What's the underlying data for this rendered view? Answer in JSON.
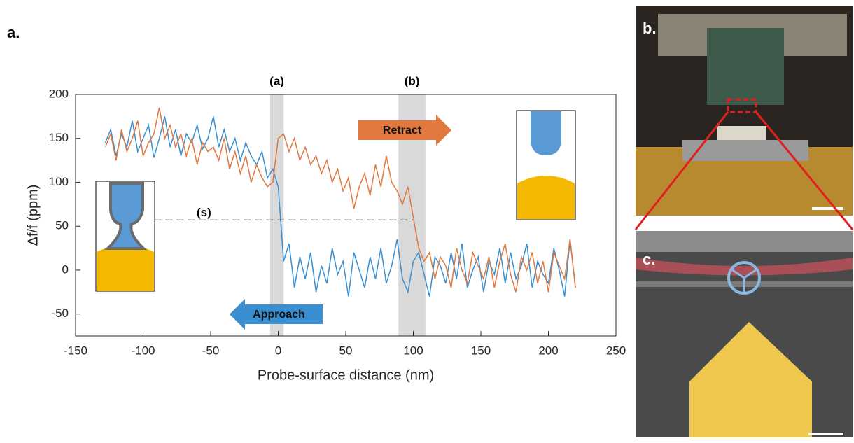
{
  "panel_labels": {
    "a": "a.",
    "b": "b.",
    "c": "c."
  },
  "chart_data": {
    "type": "line",
    "xlabel": "Probe-surface distance (nm)",
    "ylabel": "Δf/f (ppm)",
    "xlim": [
      -150,
      250
    ],
    "ylim": [
      -75,
      200
    ],
    "xticks": [
      -150,
      -100,
      -50,
      0,
      50,
      100,
      150,
      200,
      250
    ],
    "yticks": [
      -50,
      0,
      50,
      100,
      150,
      200
    ],
    "bands": [
      {
        "label": "(a)",
        "range": [
          -6,
          4
        ]
      },
      {
        "label": "(b)",
        "range": [
          89,
          109
        ]
      }
    ],
    "hline": {
      "label": "(s)",
      "value": 57,
      "range": [
        -125,
        100
      ]
    },
    "annotations": {
      "retract": "Retract",
      "approach": "Approach"
    },
    "x": [
      -128,
      -124,
      -120,
      -116,
      -112,
      -108,
      -104,
      -100,
      -96,
      -92,
      -88,
      -84,
      -80,
      -76,
      -72,
      -68,
      -64,
      -60,
      -56,
      -52,
      -48,
      -44,
      -40,
      -36,
      -32,
      -28,
      -24,
      -20,
      -16,
      -12,
      -8,
      -4,
      0,
      4,
      8,
      12,
      16,
      20,
      24,
      28,
      32,
      36,
      40,
      44,
      48,
      52,
      56,
      60,
      64,
      68,
      72,
      76,
      80,
      84,
      88,
      92,
      96,
      100,
      104,
      108,
      112,
      116,
      120,
      124,
      128,
      132,
      136,
      140,
      144,
      148,
      152,
      156,
      160,
      164,
      168,
      172,
      176,
      180,
      184,
      188,
      192,
      196,
      200,
      204,
      208,
      212,
      216,
      220
    ],
    "series": [
      {
        "name": "Approach",
        "color": "#3a8fd0",
        "values": [
          145,
          160,
          130,
          155,
          140,
          170,
          135,
          150,
          165,
          128,
          150,
          175,
          140,
          160,
          130,
          155,
          145,
          165,
          138,
          150,
          175,
          140,
          160,
          135,
          150,
          125,
          145,
          130,
          120,
          135,
          105,
          115,
          95,
          10,
          30,
          -20,
          15,
          -10,
          20,
          -25,
          5,
          -15,
          25,
          -5,
          10,
          -30,
          20,
          0,
          -20,
          15,
          -10,
          25,
          -15,
          5,
          35,
          -10,
          -25,
          10,
          20,
          -5,
          -30,
          15,
          5,
          -15,
          20,
          -10,
          30,
          -20,
          0,
          15,
          -25,
          10,
          -5,
          25,
          -15,
          20,
          -10,
          5,
          30,
          -20,
          10,
          -5,
          -15,
          25,
          0,
          -30,
          35,
          -20
        ]
      },
      {
        "name": "Retract",
        "color": "#e07840",
        "values": [
          140,
          155,
          125,
          160,
          135,
          150,
          170,
          130,
          145,
          155,
          185,
          150,
          165,
          140,
          155,
          130,
          150,
          120,
          145,
          135,
          140,
          125,
          150,
          115,
          135,
          110,
          130,
          100,
          120,
          105,
          95,
          100,
          150,
          155,
          135,
          150,
          125,
          140,
          120,
          130,
          110,
          125,
          100,
          115,
          90,
          105,
          70,
          95,
          110,
          85,
          120,
          95,
          130,
          100,
          90,
          75,
          95,
          60,
          25,
          10,
          20,
          -10,
          15,
          5,
          -20,
          25,
          0,
          -15,
          20,
          5,
          -10,
          15,
          -20,
          10,
          30,
          -5,
          -25,
          15,
          0,
          20,
          -15,
          10,
          -25,
          20,
          5,
          -10,
          35,
          -20
        ]
      }
    ]
  }
}
